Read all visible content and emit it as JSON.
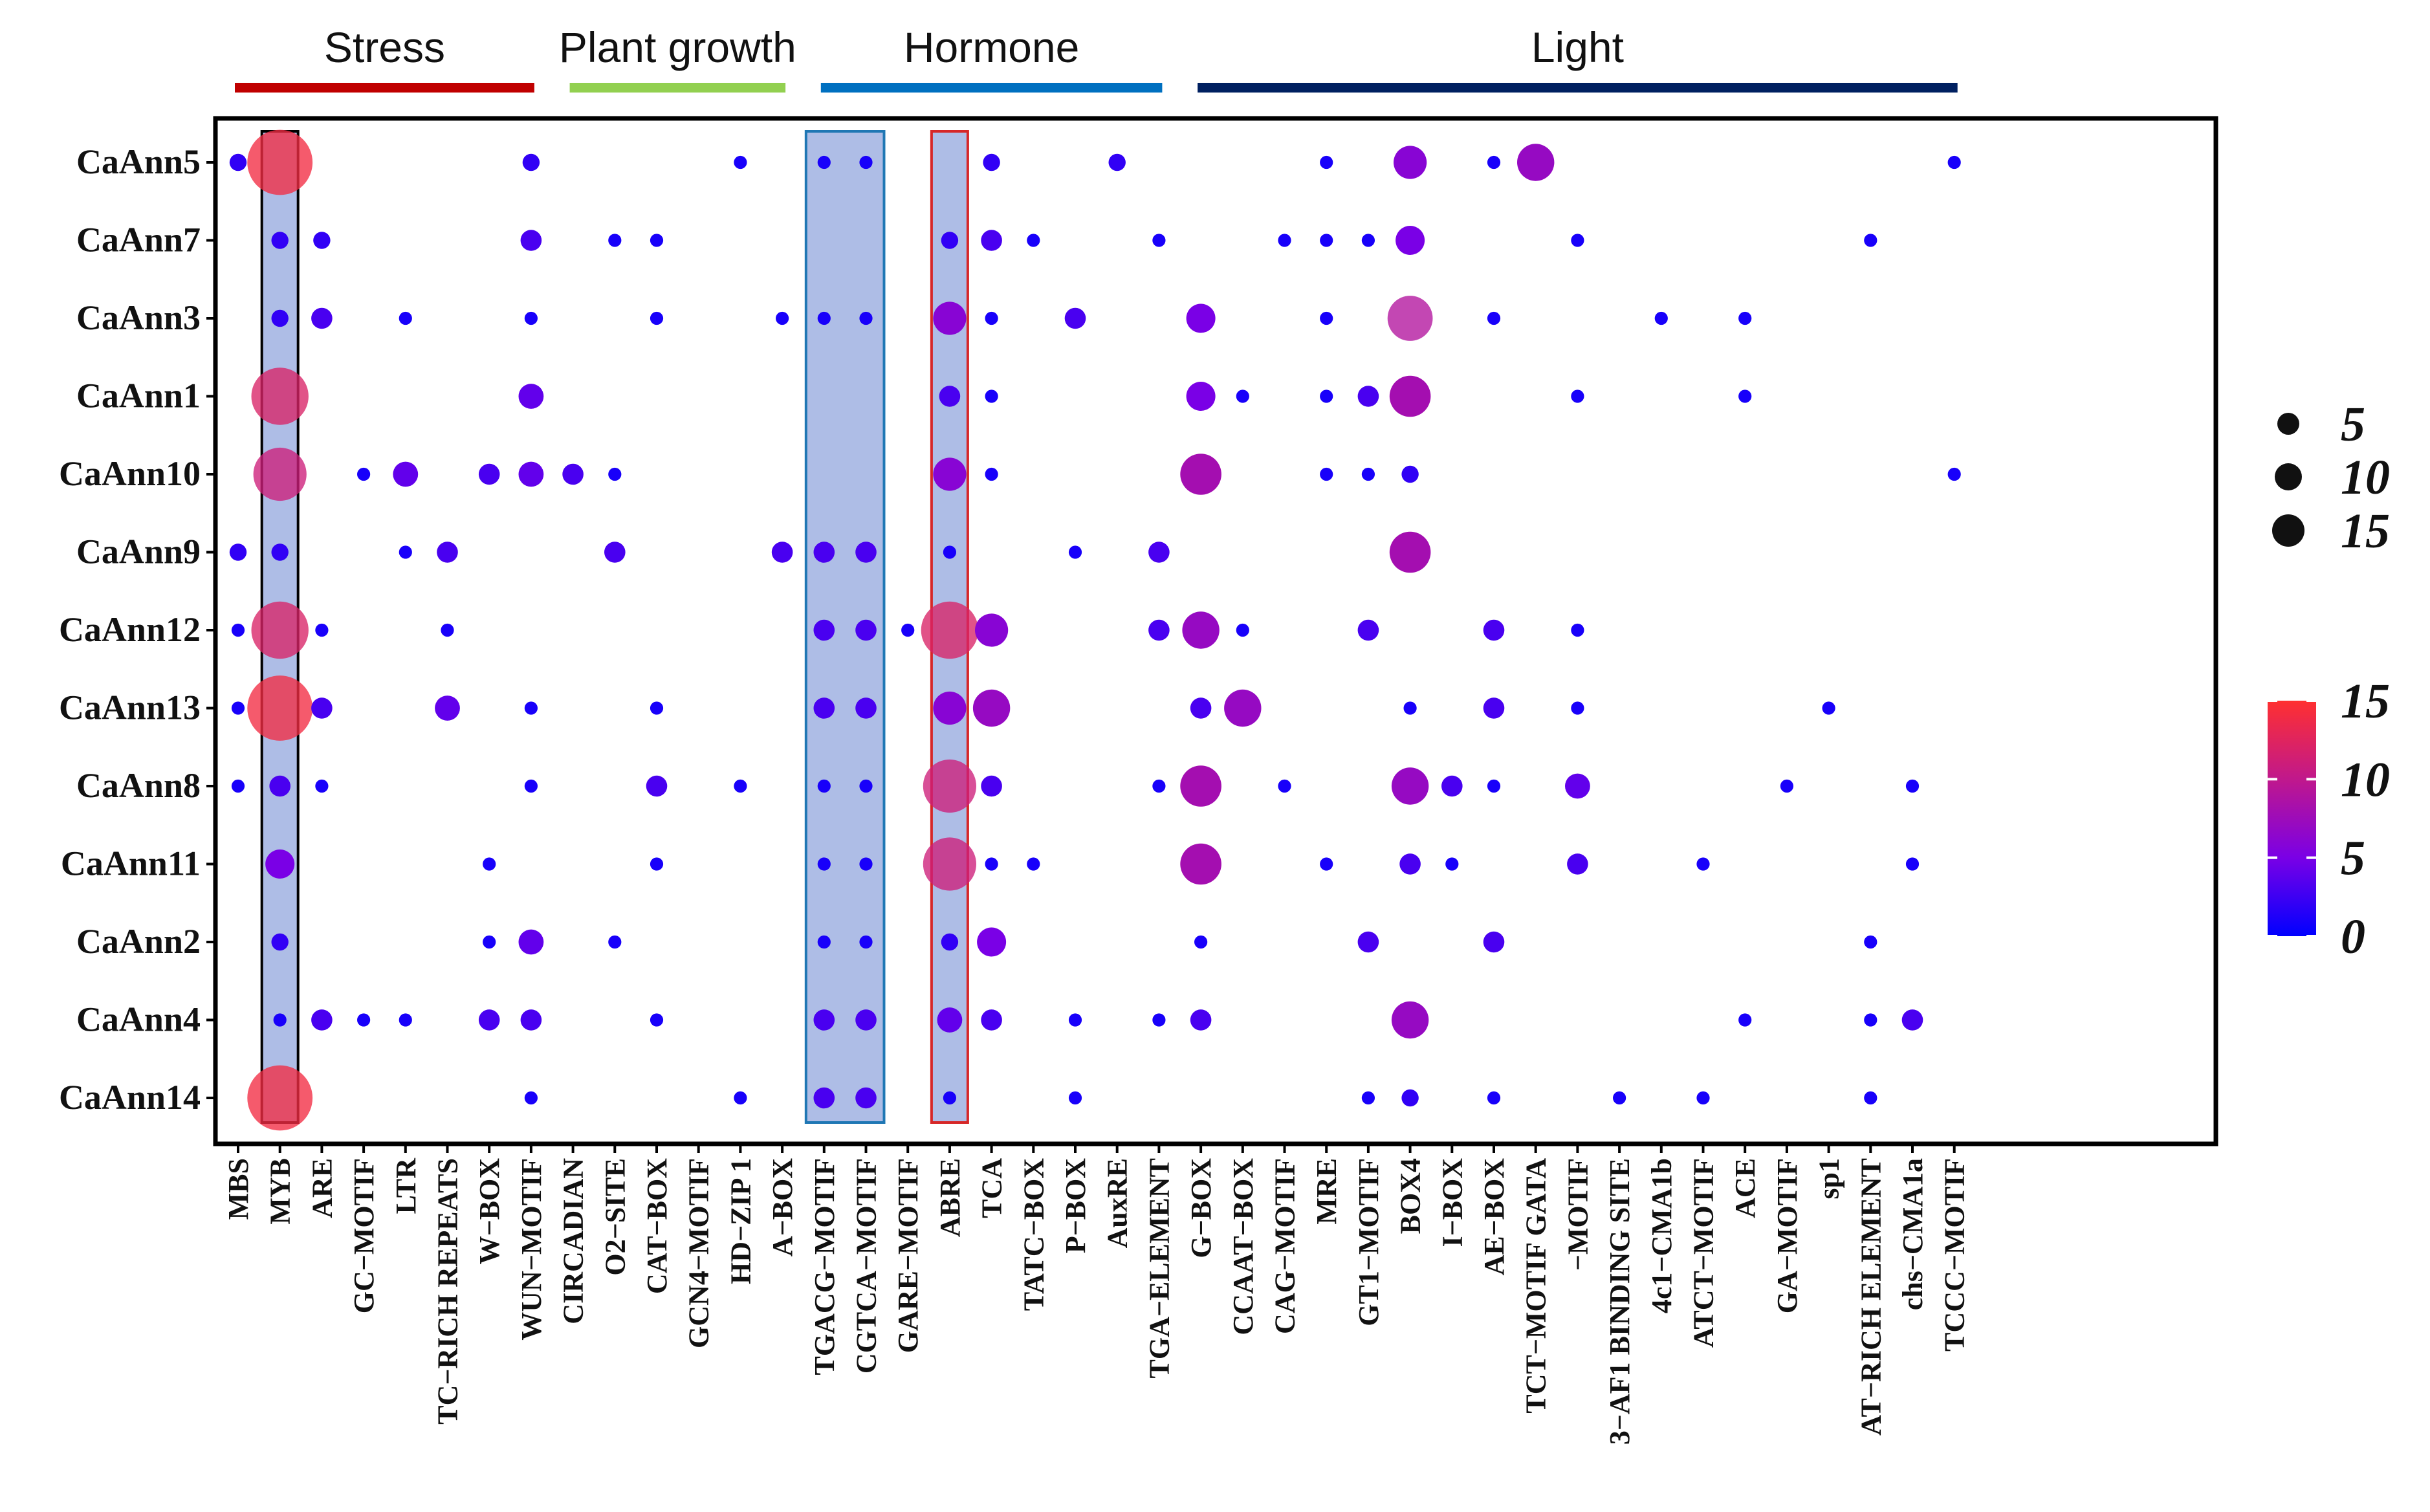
{
  "chart_data": {
    "type": "scatter",
    "subtype": "bubble-matrix",
    "genes": [
      "CaAnn5",
      "CaAnn7",
      "CaAnn3",
      "CaAnn1",
      "CaAnn10",
      "CaAnn9",
      "CaAnn12",
      "CaAnn13",
      "CaAnn8",
      "CaAnn11",
      "CaAnn2",
      "CaAnn4",
      "CaAnn14"
    ],
    "motifs": [
      "MBS",
      "MYB",
      "ARE",
      "GC−MOTIF",
      "LTR",
      "TC−RICH REPEATS",
      "W−BOX",
      "WUN−MOTIF",
      "CIRCADIAN",
      "O2−SITE",
      "CAT−BOX",
      "GCN4−MOTIF",
      "HD−ZIP 1",
      "A−BOX",
      "TGACG−MOTIF",
      "CGTCA−MOTIF",
      "GARE−MOTIF",
      "ABRE",
      "TCA",
      "TATC−BOX",
      "P−BOX",
      "AuxRE",
      "TGA−ELEMENT",
      "G−BOX",
      "CCAAT−BOX",
      "CAG−MOTIF",
      "MRE",
      "GT1−MOTIF",
      "BOX4",
      "I−BOX",
      "AE−BOX",
      "TCT−MOTIF GATA",
      "−MOTIF",
      "3−AF1 BINDING SITE",
      "4c1−CMA1b",
      "ATCT−MOTIF",
      "ACE",
      "GA−MOTIF",
      "sp1",
      "AT−RICH ELEMENT",
      "chs−CMA1a",
      "TCCC−MOTIF"
    ],
    "groups": [
      {
        "name": "Stress",
        "color": "#c00000",
        "motif_start": 0,
        "motif_end": 7
      },
      {
        "name": "Plant growth",
        "color": "#92d050",
        "motif_start": 8,
        "motif_end": 13
      },
      {
        "name": "Hormone",
        "color": "#0070c0",
        "motif_start": 14,
        "motif_end": 22
      },
      {
        "name": "Light",
        "color": "#002060",
        "motif_start": 23,
        "motif_end": 41
      }
    ],
    "highlights": [
      {
        "motif_start": 1,
        "motif_end": 1,
        "border": "#000000"
      },
      {
        "motif_start": 14,
        "motif_end": 15,
        "border": "#1f77b4"
      },
      {
        "motif_start": 17,
        "motif_end": 17,
        "border": "#d62728"
      }
    ],
    "points": [
      [
        "CaAnn5",
        "MBS",
        2
      ],
      [
        "CaAnn5",
        "MYB",
        14
      ],
      [
        "CaAnn5",
        "WUN−MOTIF",
        2
      ],
      [
        "CaAnn5",
        "HD−ZIP 1",
        1
      ],
      [
        "CaAnn5",
        "TGACG−MOTIF",
        1
      ],
      [
        "CaAnn5",
        "CGTCA−MOTIF",
        1
      ],
      [
        "CaAnn5",
        "TCA",
        2
      ],
      [
        "CaAnn5",
        "AuxRE",
        2
      ],
      [
        "CaAnn5",
        "MRE",
        1
      ],
      [
        "CaAnn5",
        "BOX4",
        6
      ],
      [
        "CaAnn5",
        "AE−BOX",
        1
      ],
      [
        "CaAnn5",
        "TCT−MOTIF GATA",
        7
      ],
      [
        "CaAnn5",
        "TCCC−MOTIF",
        1
      ],
      [
        "CaAnn7",
        "MYB",
        2
      ],
      [
        "CaAnn7",
        "ARE",
        2
      ],
      [
        "CaAnn7",
        "WUN−MOTIF",
        3
      ],
      [
        "CaAnn7",
        "O2−SITE",
        1
      ],
      [
        "CaAnn7",
        "CAT−BOX",
        1
      ],
      [
        "CaAnn7",
        "ABRE",
        2
      ],
      [
        "CaAnn7",
        "TCA",
        3
      ],
      [
        "CaAnn7",
        "TATC−BOX",
        1
      ],
      [
        "CaAnn7",
        "TGA−ELEMENT",
        1
      ],
      [
        "CaAnn7",
        "CAG−MOTIF",
        1
      ],
      [
        "CaAnn7",
        "MRE",
        1
      ],
      [
        "CaAnn7",
        "GT1−MOTIF",
        1
      ],
      [
        "CaAnn7",
        "BOX4",
        5
      ],
      [
        "CaAnn7",
        "−MOTIF",
        1
      ],
      [
        "CaAnn7",
        "AT−RICH ELEMENT",
        1
      ],
      [
        "CaAnn3",
        "MYB",
        2
      ],
      [
        "CaAnn3",
        "ARE",
        3
      ],
      [
        "CaAnn3",
        "LTR",
        1
      ],
      [
        "CaAnn3",
        "WUN−MOTIF",
        1
      ],
      [
        "CaAnn3",
        "CAT−BOX",
        1
      ],
      [
        "CaAnn3",
        "A−BOX",
        1
      ],
      [
        "CaAnn3",
        "TGACG−MOTIF",
        1
      ],
      [
        "CaAnn3",
        "CGTCA−MOTIF",
        1
      ],
      [
        "CaAnn3",
        "ABRE",
        6
      ],
      [
        "CaAnn3",
        "TCA",
        1
      ],
      [
        "CaAnn3",
        "P−BOX",
        3
      ],
      [
        "CaAnn3",
        "G−BOX",
        5
      ],
      [
        "CaAnn3",
        "MRE",
        1
      ],
      [
        "CaAnn3",
        "BOX4",
        9
      ],
      [
        "CaAnn3",
        "AE−BOX",
        1
      ],
      [
        "CaAnn3",
        "4c1−CMA1b",
        1
      ],
      [
        "CaAnn3",
        "ACE",
        1
      ],
      [
        "CaAnn1",
        "MYB",
        12
      ],
      [
        "CaAnn1",
        "WUN−MOTIF",
        4
      ],
      [
        "CaAnn1",
        "ABRE",
        3
      ],
      [
        "CaAnn1",
        "TCA",
        1
      ],
      [
        "CaAnn1",
        "G−BOX",
        5
      ],
      [
        "CaAnn1",
        "CCAAT−BOX",
        1
      ],
      [
        "CaAnn1",
        "MRE",
        1
      ],
      [
        "CaAnn1",
        "GT1−MOTIF",
        3
      ],
      [
        "CaAnn1",
        "BOX4",
        8
      ],
      [
        "CaAnn1",
        "−MOTIF",
        1
      ],
      [
        "CaAnn1",
        "ACE",
        1
      ],
      [
        "CaAnn10",
        "MYB",
        11
      ],
      [
        "CaAnn10",
        "GC−MOTIF",
        1
      ],
      [
        "CaAnn10",
        "LTR",
        4
      ],
      [
        "CaAnn10",
        "W−BOX",
        3
      ],
      [
        "CaAnn10",
        "WUN−MOTIF",
        4
      ],
      [
        "CaAnn10",
        "CIRCADIAN",
        3
      ],
      [
        "CaAnn10",
        "O2−SITE",
        1
      ],
      [
        "CaAnn10",
        "ABRE",
        6
      ],
      [
        "CaAnn10",
        "TCA",
        1
      ],
      [
        "CaAnn10",
        "G−BOX",
        8
      ],
      [
        "CaAnn10",
        "MRE",
        1
      ],
      [
        "CaAnn10",
        "GT1−MOTIF",
        1
      ],
      [
        "CaAnn10",
        "BOX4",
        2
      ],
      [
        "CaAnn10",
        "TCCC−MOTIF",
        1
      ],
      [
        "CaAnn9",
        "MBS",
        2
      ],
      [
        "CaAnn9",
        "MYB",
        2
      ],
      [
        "CaAnn9",
        "LTR",
        1
      ],
      [
        "CaAnn9",
        "TC−RICH REPEATS",
        3
      ],
      [
        "CaAnn9",
        "O2−SITE",
        3
      ],
      [
        "CaAnn9",
        "A−BOX",
        3
      ],
      [
        "CaAnn9",
        "TGACG−MOTIF",
        3
      ],
      [
        "CaAnn9",
        "CGTCA−MOTIF",
        3
      ],
      [
        "CaAnn9",
        "ABRE",
        1
      ],
      [
        "CaAnn9",
        "P−BOX",
        1
      ],
      [
        "CaAnn9",
        "TGA−ELEMENT",
        3
      ],
      [
        "CaAnn9",
        "BOX4",
        8
      ],
      [
        "CaAnn12",
        "MBS",
        1
      ],
      [
        "CaAnn12",
        "MYB",
        12
      ],
      [
        "CaAnn12",
        "ARE",
        1
      ],
      [
        "CaAnn12",
        "TC−RICH REPEATS",
        1
      ],
      [
        "CaAnn12",
        "TGACG−MOTIF",
        3
      ],
      [
        "CaAnn12",
        "CGTCA−MOTIF",
        3
      ],
      [
        "CaAnn12",
        "GARE−MOTIF",
        1
      ],
      [
        "CaAnn12",
        "ABRE",
        12
      ],
      [
        "CaAnn12",
        "TCA",
        6
      ],
      [
        "CaAnn12",
        "TGA−ELEMENT",
        3
      ],
      [
        "CaAnn12",
        "G−BOX",
        7
      ],
      [
        "CaAnn12",
        "CCAAT−BOX",
        1
      ],
      [
        "CaAnn12",
        "GT1−MOTIF",
        3
      ],
      [
        "CaAnn12",
        "AE−BOX",
        3
      ],
      [
        "CaAnn12",
        "−MOTIF",
        1
      ],
      [
        "CaAnn13",
        "MBS",
        1
      ],
      [
        "CaAnn13",
        "MYB",
        14
      ],
      [
        "CaAnn13",
        "ARE",
        3
      ],
      [
        "CaAnn13",
        "TC−RICH REPEATS",
        4
      ],
      [
        "CaAnn13",
        "WUN−MOTIF",
        1
      ],
      [
        "CaAnn13",
        "CAT−BOX",
        1
      ],
      [
        "CaAnn13",
        "TGACG−MOTIF",
        3
      ],
      [
        "CaAnn13",
        "CGTCA−MOTIF",
        3
      ],
      [
        "CaAnn13",
        "ABRE",
        6
      ],
      [
        "CaAnn13",
        "TCA",
        7
      ],
      [
        "CaAnn13",
        "G−BOX",
        3
      ],
      [
        "CaAnn13",
        "CCAAT−BOX",
        7
      ],
      [
        "CaAnn13",
        "BOX4",
        1
      ],
      [
        "CaAnn13",
        "AE−BOX",
        3
      ],
      [
        "CaAnn13",
        "−MOTIF",
        1
      ],
      [
        "CaAnn13",
        "sp1",
        1
      ],
      [
        "CaAnn8",
        "MBS",
        1
      ],
      [
        "CaAnn8",
        "MYB",
        3
      ],
      [
        "CaAnn8",
        "ARE",
        1
      ],
      [
        "CaAnn8",
        "WUN−MOTIF",
        1
      ],
      [
        "CaAnn8",
        "CAT−BOX",
        3
      ],
      [
        "CaAnn8",
        "HD−ZIP 1",
        1
      ],
      [
        "CaAnn8",
        "TGACG−MOTIF",
        1
      ],
      [
        "CaAnn8",
        "CGTCA−MOTIF",
        1
      ],
      [
        "CaAnn8",
        "ABRE",
        11
      ],
      [
        "CaAnn8",
        "TCA",
        3
      ],
      [
        "CaAnn8",
        "TGA−ELEMENT",
        1
      ],
      [
        "CaAnn8",
        "G−BOX",
        8
      ],
      [
        "CaAnn8",
        "CAG−MOTIF",
        1
      ],
      [
        "CaAnn8",
        "BOX4",
        7
      ],
      [
        "CaAnn8",
        "I−BOX",
        3
      ],
      [
        "CaAnn8",
        "AE−BOX",
        1
      ],
      [
        "CaAnn8",
        "−MOTIF",
        4
      ],
      [
        "CaAnn8",
        "GA−MOTIF",
        1
      ],
      [
        "CaAnn8",
        "chs−CMA1a",
        1
      ],
      [
        "CaAnn11",
        "MYB",
        5
      ],
      [
        "CaAnn11",
        "W−BOX",
        1
      ],
      [
        "CaAnn11",
        "CAT−BOX",
        1
      ],
      [
        "CaAnn11",
        "TGACG−MOTIF",
        1
      ],
      [
        "CaAnn11",
        "CGTCA−MOTIF",
        1
      ],
      [
        "CaAnn11",
        "ABRE",
        11
      ],
      [
        "CaAnn11",
        "TCA",
        1
      ],
      [
        "CaAnn11",
        "TATC−BOX",
        1
      ],
      [
        "CaAnn11",
        "G−BOX",
        8
      ],
      [
        "CaAnn11",
        "MRE",
        1
      ],
      [
        "CaAnn11",
        "BOX4",
        3
      ],
      [
        "CaAnn11",
        "I−BOX",
        1
      ],
      [
        "CaAnn11",
        "−MOTIF",
        3
      ],
      [
        "CaAnn11",
        "ATCT−MOTIF",
        1
      ],
      [
        "CaAnn11",
        "chs−CMA1a",
        1
      ],
      [
        "CaAnn2",
        "MYB",
        2
      ],
      [
        "CaAnn2",
        "W−BOX",
        1
      ],
      [
        "CaAnn2",
        "WUN−MOTIF",
        4
      ],
      [
        "CaAnn2",
        "O2−SITE",
        1
      ],
      [
        "CaAnn2",
        "TGACG−MOTIF",
        1
      ],
      [
        "CaAnn2",
        "CGTCA−MOTIF",
        1
      ],
      [
        "CaAnn2",
        "ABRE",
        2
      ],
      [
        "CaAnn2",
        "TCA",
        5
      ],
      [
        "CaAnn2",
        "G−BOX",
        1
      ],
      [
        "CaAnn2",
        "GT1−MOTIF",
        3
      ],
      [
        "CaAnn2",
        "AE−BOX",
        3
      ],
      [
        "CaAnn2",
        "AT−RICH ELEMENT",
        1
      ],
      [
        "CaAnn4",
        "MYB",
        1
      ],
      [
        "CaAnn4",
        "ARE",
        3
      ],
      [
        "CaAnn4",
        "GC−MOTIF",
        1
      ],
      [
        "CaAnn4",
        "LTR",
        1
      ],
      [
        "CaAnn4",
        "W−BOX",
        3
      ],
      [
        "CaAnn4",
        "WUN−MOTIF",
        3
      ],
      [
        "CaAnn4",
        "CAT−BOX",
        1
      ],
      [
        "CaAnn4",
        "TGACG−MOTIF",
        3
      ],
      [
        "CaAnn4",
        "CGTCA−MOTIF",
        3
      ],
      [
        "CaAnn4",
        "ABRE",
        4
      ],
      [
        "CaAnn4",
        "TCA",
        3
      ],
      [
        "CaAnn4",
        "P−BOX",
        1
      ],
      [
        "CaAnn4",
        "TGA−ELEMENT",
        1
      ],
      [
        "CaAnn4",
        "G−BOX",
        3
      ],
      [
        "CaAnn4",
        "BOX4",
        7
      ],
      [
        "CaAnn4",
        "ACE",
        1
      ],
      [
        "CaAnn4",
        "AT−RICH ELEMENT",
        1
      ],
      [
        "CaAnn4",
        "chs−CMA1a",
        3
      ],
      [
        "CaAnn14",
        "MYB",
        14
      ],
      [
        "CaAnn14",
        "WUN−MOTIF",
        1
      ],
      [
        "CaAnn14",
        "HD−ZIP 1",
        1
      ],
      [
        "CaAnn14",
        "TGACG−MOTIF",
        3
      ],
      [
        "CaAnn14",
        "CGTCA−MOTIF",
        3
      ],
      [
        "CaAnn14",
        "ABRE",
        1
      ],
      [
        "CaAnn14",
        "P−BOX",
        1
      ],
      [
        "CaAnn14",
        "GT1−MOTIF",
        1
      ],
      [
        "CaAnn14",
        "BOX4",
        2
      ],
      [
        "CaAnn14",
        "AE−BOX",
        1
      ],
      [
        "CaAnn14",
        "3−AF1 BINDING SITE",
        1
      ],
      [
        "CaAnn14",
        "ATCT−MOTIF",
        1
      ],
      [
        "CaAnn14",
        "AT−RICH ELEMENT",
        1
      ]
    ],
    "size_legend": {
      "values": [
        5,
        10,
        15
      ],
      "labels": [
        "5",
        "10",
        "15"
      ]
    },
    "color_legend": {
      "min": 0,
      "max": 15,
      "ticks": [
        0,
        5,
        10,
        15
      ],
      "labels": [
        "0",
        "5",
        "10",
        "15"
      ],
      "colors": [
        "#0000ff",
        "#7a00e6",
        "#c0188c",
        "#ff3030"
      ]
    }
  }
}
